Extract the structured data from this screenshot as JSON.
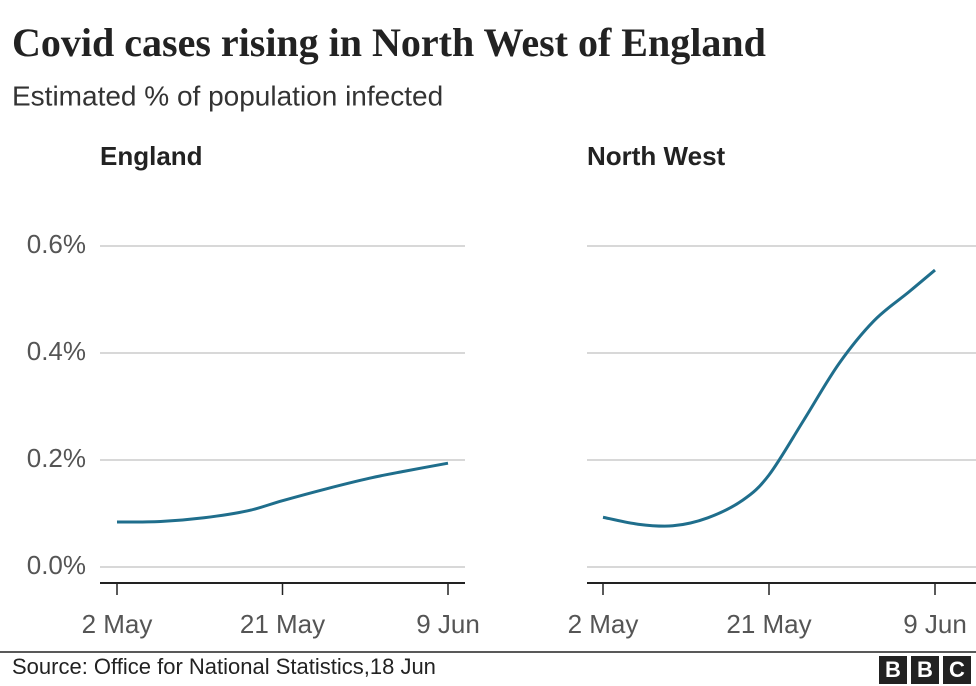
{
  "title": "Covid cases rising in North West of England",
  "subtitle": "Estimated % of population infected",
  "source": "Source: Office for National Statistics,18 Jun",
  "logo": [
    "B",
    "B",
    "C"
  ],
  "chart_data": [
    {
      "type": "line",
      "title": "England",
      "color": "#1f6e8c",
      "x": [
        "2 May",
        "7 May",
        "12 May",
        "17 May",
        "21 May",
        "26 May",
        "31 May",
        "4 Jun",
        "9 Jun"
      ],
      "values": [
        0.084,
        0.085,
        0.092,
        0.105,
        0.124,
        0.146,
        0.166,
        0.179,
        0.194
      ],
      "xlim": [
        "2 May",
        "9 Jun"
      ],
      "xticks": [
        "2 May",
        "21 May",
        "9 Jun"
      ],
      "ylim": [
        0,
        0.6
      ],
      "yticks": [
        {
          "value": 0,
          "label": "0.0%"
        },
        {
          "value": 0.2,
          "label": "0.2%"
        },
        {
          "value": 0.4,
          "label": "0.4%"
        },
        {
          "value": 0.6,
          "label": "0.6%"
        }
      ],
      "grid": true
    },
    {
      "type": "line",
      "title": "North West",
      "color": "#1f6e8c",
      "x": [
        "2 May",
        "6 May",
        "10 May",
        "14 May",
        "18 May",
        "21 May",
        "25 May",
        "29 May",
        "2 Jun",
        "6 Jun",
        "9 Jun"
      ],
      "values": [
        0.093,
        0.08,
        0.077,
        0.092,
        0.125,
        0.172,
        0.275,
        0.38,
        0.46,
        0.514,
        0.555
      ],
      "xlim": [
        "2 May",
        "9 Jun"
      ],
      "xticks": [
        "2 May",
        "21 May",
        "9 Jun"
      ],
      "ylim": [
        0,
        0.6
      ],
      "yticks": [
        0,
        0.2,
        0.4,
        0.6
      ],
      "grid": true
    }
  ]
}
